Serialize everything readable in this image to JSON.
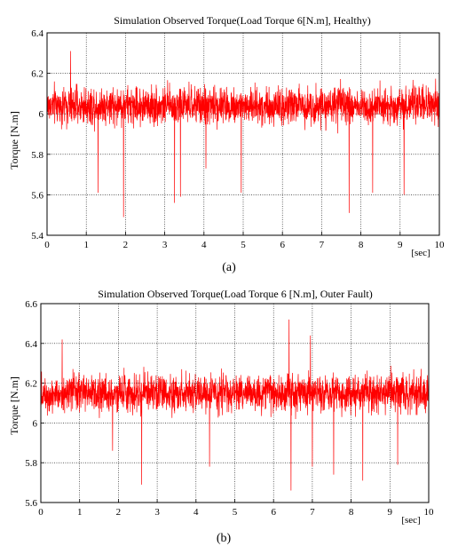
{
  "chart_data": [
    {
      "type": "line",
      "title": "Simulation Observed Torque(Load Torque 6[N.m], Healthy)",
      "ylabel": "Torque [N.m]",
      "xunit": "[sec]",
      "caption": "(a)",
      "xlim": [
        0,
        10
      ],
      "ylim": [
        5.4,
        6.4
      ],
      "xticks": [
        "0",
        "1",
        "2",
        "3",
        "4",
        "5",
        "6",
        "7",
        "8",
        "9",
        "10"
      ],
      "yticks": [
        "5.4",
        "5.6",
        "5.8",
        "6",
        "6.2",
        "6.4"
      ],
      "grid": true,
      "color": "#ff0000",
      "mean": 6.04,
      "band": 0.07,
      "spikes": [
        {
          "x": 0.6,
          "y": 6.31
        },
        {
          "x": 1.3,
          "y": 5.61
        },
        {
          "x": 1.95,
          "y": 5.49
        },
        {
          "x": 3.25,
          "y": 5.56
        },
        {
          "x": 3.4,
          "y": 5.59
        },
        {
          "x": 4.05,
          "y": 5.73
        },
        {
          "x": 4.95,
          "y": 5.61
        },
        {
          "x": 7.7,
          "y": 5.51
        },
        {
          "x": 8.3,
          "y": 5.61
        },
        {
          "x": 9.1,
          "y": 5.6
        }
      ]
    },
    {
      "type": "line",
      "title": "Simulation Observed Torque(Load Torque 6 [N.m], Outer Fault)",
      "ylabel": "Torque [N.m]",
      "xunit": "[sec]",
      "caption": "(b)",
      "xlim": [
        0,
        10
      ],
      "ylim": [
        5.6,
        6.6
      ],
      "xticks": [
        "0",
        "1",
        "2",
        "3",
        "4",
        "5",
        "6",
        "7",
        "8",
        "9",
        "10"
      ],
      "yticks": [
        "5.6",
        "5.8",
        "6",
        "6.2",
        "6.4",
        "6.6"
      ],
      "grid": true,
      "color": "#ff0000",
      "mean": 6.15,
      "band": 0.07,
      "spikes": [
        {
          "x": 0.55,
          "y": 6.42
        },
        {
          "x": 1.85,
          "y": 5.86
        },
        {
          "x": 2.6,
          "y": 5.69
        },
        {
          "x": 4.35,
          "y": 5.78
        },
        {
          "x": 6.4,
          "y": 6.52
        },
        {
          "x": 6.45,
          "y": 5.66
        },
        {
          "x": 6.95,
          "y": 6.44
        },
        {
          "x": 7.0,
          "y": 5.78
        },
        {
          "x": 7.55,
          "y": 5.74
        },
        {
          "x": 8.3,
          "y": 5.71
        },
        {
          "x": 9.2,
          "y": 5.79
        }
      ]
    }
  ]
}
